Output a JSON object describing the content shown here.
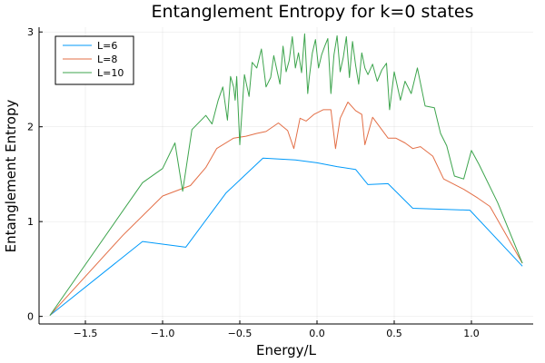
{
  "chart_data": {
    "type": "line",
    "title": "Entanglement Entropy for k=0 states",
    "xlabel": "Energy/L",
    "ylabel": "Entanglement Entropy",
    "xlim": [
      -1.8,
      1.4
    ],
    "ylim": [
      -0.08,
      3.05
    ],
    "xticks": [
      -1.5,
      -1.0,
      -0.5,
      0.0,
      0.5,
      1.0
    ],
    "xtick_labels": [
      "−1.5",
      "−1.0",
      "−0.5",
      "0.0",
      "0.5",
      "1.0"
    ],
    "yticks": [
      0,
      1,
      2,
      3
    ],
    "ytick_labels": [
      "0",
      "1",
      "2",
      "3"
    ],
    "grid": true,
    "legend_position": "top-left",
    "series": [
      {
        "name": "L=6",
        "color": "#009AFA",
        "x": [
          -1.73,
          -1.13,
          -0.85,
          -0.59,
          -0.35,
          -0.14,
          0.0,
          0.13,
          0.25,
          0.33,
          0.46,
          0.62,
          0.99,
          1.33
        ],
        "y": [
          0.01,
          0.79,
          0.73,
          1.3,
          1.67,
          1.65,
          1.62,
          1.58,
          1.55,
          1.39,
          1.4,
          1.14,
          1.12,
          0.53
        ]
      },
      {
        "name": "L=8",
        "color": "#E36F47",
        "x": [
          -1.73,
          -1.26,
          -1.0,
          -0.87,
          -0.82,
          -0.72,
          -0.65,
          -0.54,
          -0.46,
          -0.39,
          -0.33,
          -0.25,
          -0.19,
          -0.15,
          -0.11,
          -0.07,
          -0.02,
          0.04,
          0.09,
          0.12,
          0.15,
          0.2,
          0.25,
          0.29,
          0.31,
          0.36,
          0.41,
          0.46,
          0.51,
          0.57,
          0.62,
          0.67,
          0.75,
          0.82,
          0.95,
          1.04,
          1.12,
          1.33
        ],
        "y": [
          0.01,
          0.85,
          1.27,
          1.35,
          1.38,
          1.57,
          1.77,
          1.88,
          1.9,
          1.93,
          1.95,
          2.04,
          1.96,
          1.77,
          2.09,
          2.06,
          2.13,
          2.18,
          2.18,
          1.77,
          2.09,
          2.26,
          2.17,
          2.13,
          1.81,
          2.1,
          1.99,
          1.88,
          1.88,
          1.83,
          1.77,
          1.79,
          1.69,
          1.45,
          1.34,
          1.25,
          1.16,
          0.56
        ]
      },
      {
        "name": "L=10",
        "color": "#3DA44D",
        "x": [
          -1.73,
          -1.13,
          -1.0,
          -0.92,
          -0.87,
          -0.81,
          -0.72,
          -0.68,
          -0.64,
          -0.61,
          -0.58,
          -0.56,
          -0.54,
          -0.53,
          -0.52,
          -0.5,
          -0.47,
          -0.44,
          -0.42,
          -0.39,
          -0.36,
          -0.33,
          -0.3,
          -0.28,
          -0.26,
          -0.24,
          -0.22,
          -0.2,
          -0.18,
          -0.16,
          -0.14,
          -0.12,
          -0.1,
          -0.08,
          -0.06,
          -0.05,
          -0.03,
          -0.01,
          0.01,
          0.03,
          0.05,
          0.07,
          0.09,
          0.11,
          0.13,
          0.15,
          0.17,
          0.19,
          0.21,
          0.23,
          0.25,
          0.27,
          0.29,
          0.31,
          0.33,
          0.36,
          0.39,
          0.42,
          0.45,
          0.47,
          0.5,
          0.54,
          0.57,
          0.61,
          0.65,
          0.7,
          0.76,
          0.8,
          0.84,
          0.89,
          0.95,
          1.0,
          1.05,
          1.17,
          1.33
        ],
        "y": [
          0.01,
          1.41,
          1.56,
          1.83,
          1.32,
          1.97,
          2.12,
          2.03,
          2.28,
          2.42,
          2.07,
          2.53,
          2.42,
          2.28,
          2.53,
          1.81,
          2.55,
          2.32,
          2.68,
          2.62,
          2.82,
          2.42,
          2.52,
          2.75,
          2.6,
          2.45,
          2.85,
          2.58,
          2.7,
          2.95,
          2.62,
          2.78,
          2.57,
          2.98,
          2.35,
          2.52,
          2.78,
          2.92,
          2.62,
          2.76,
          2.85,
          2.93,
          2.35,
          2.76,
          2.96,
          2.58,
          2.73,
          2.95,
          2.52,
          2.9,
          2.65,
          2.45,
          2.78,
          2.62,
          2.55,
          2.66,
          2.48,
          2.6,
          2.67,
          2.18,
          2.58,
          2.28,
          2.48,
          2.35,
          2.62,
          2.22,
          2.2,
          1.93,
          1.8,
          1.48,
          1.45,
          1.75,
          1.6,
          1.2,
          0.56
        ]
      }
    ]
  }
}
